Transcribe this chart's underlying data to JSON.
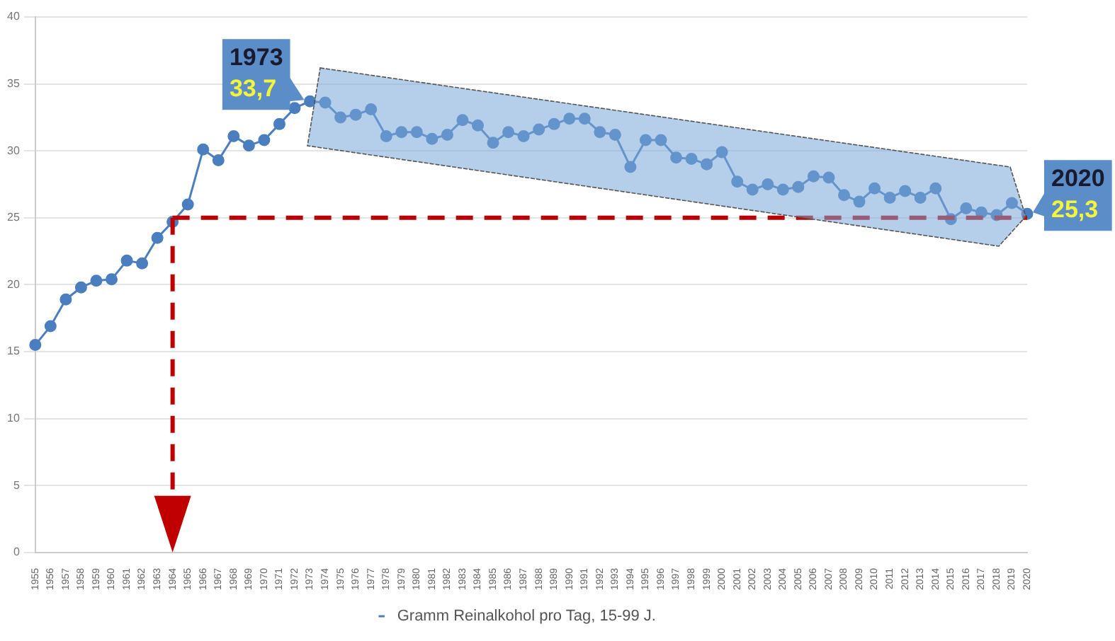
{
  "chart_data": {
    "type": "line",
    "categories": [
      "1955",
      "1956",
      "1957",
      "1958",
      "1959",
      "1960",
      "1961",
      "1962",
      "1963",
      "1964",
      "1965",
      "1966",
      "1967",
      "1968",
      "1969",
      "1970",
      "1971",
      "1972",
      "1973",
      "1974",
      "1975",
      "1976",
      "1977",
      "1978",
      "1979",
      "1980",
      "1981",
      "1982",
      "1983",
      "1984",
      "1985",
      "1986",
      "1987",
      "1988",
      "1989",
      "1990",
      "1991",
      "1992",
      "1993",
      "1994",
      "1995",
      "1996",
      "1997",
      "1998",
      "1999",
      "2000",
      "2001",
      "2002",
      "2003",
      "2004",
      "2005",
      "2006",
      "2007",
      "2008",
      "2009",
      "2010",
      "2011",
      "2012",
      "2013",
      "2014",
      "2015",
      "2016",
      "2017",
      "2018",
      "2019",
      "2020"
    ],
    "series": [
      {
        "name": "Gramm Reinalkohol pro Tag, 15-99 J.",
        "color": "#4a7ebf",
        "values": [
          15.5,
          16.9,
          18.9,
          19.8,
          20.3,
          20.4,
          21.8,
          21.6,
          23.5,
          24.7,
          26.0,
          30.1,
          29.3,
          31.1,
          30.4,
          30.8,
          32.0,
          33.2,
          33.7,
          33.6,
          32.5,
          32.7,
          33.1,
          31.1,
          31.4,
          31.4,
          30.9,
          31.2,
          32.3,
          31.9,
          30.6,
          31.4,
          31.1,
          31.6,
          32.0,
          32.4,
          32.4,
          31.4,
          31.2,
          28.8,
          30.8,
          30.8,
          29.5,
          29.4,
          29.0,
          29.9,
          27.7,
          27.1,
          27.5,
          27.1,
          27.3,
          28.1,
          28.0,
          26.7,
          26.2,
          27.2,
          26.5,
          27.0,
          26.5,
          27.2,
          24.9,
          25.7,
          25.4,
          25.2,
          26.1,
          25.3
        ]
      }
    ],
    "ylim": [
      0,
      40
    ],
    "yticks": [
      0,
      5,
      10,
      15,
      20,
      25,
      30,
      35,
      40
    ],
    "grid": "y",
    "legend": "bottom",
    "marker": "circle",
    "line_style": "solid",
    "ref_lines": [
      {
        "axis": "x",
        "value": "1964",
        "color": "#c00000",
        "line_style": "dashed"
      },
      {
        "axis": "y",
        "value": 25,
        "color": "#c00000",
        "line_style": "dashed"
      }
    ],
    "annotations": [
      {
        "text": "1973",
        "x": "1973",
        "y": 33.7
      },
      {
        "text": "33,7",
        "x": "1973",
        "y": 33.7
      },
      {
        "text": "2020",
        "x": "2020",
        "y": 25.3
      },
      {
        "text": "25,3",
        "x": "2020",
        "y": 25.3
      }
    ]
  }
}
